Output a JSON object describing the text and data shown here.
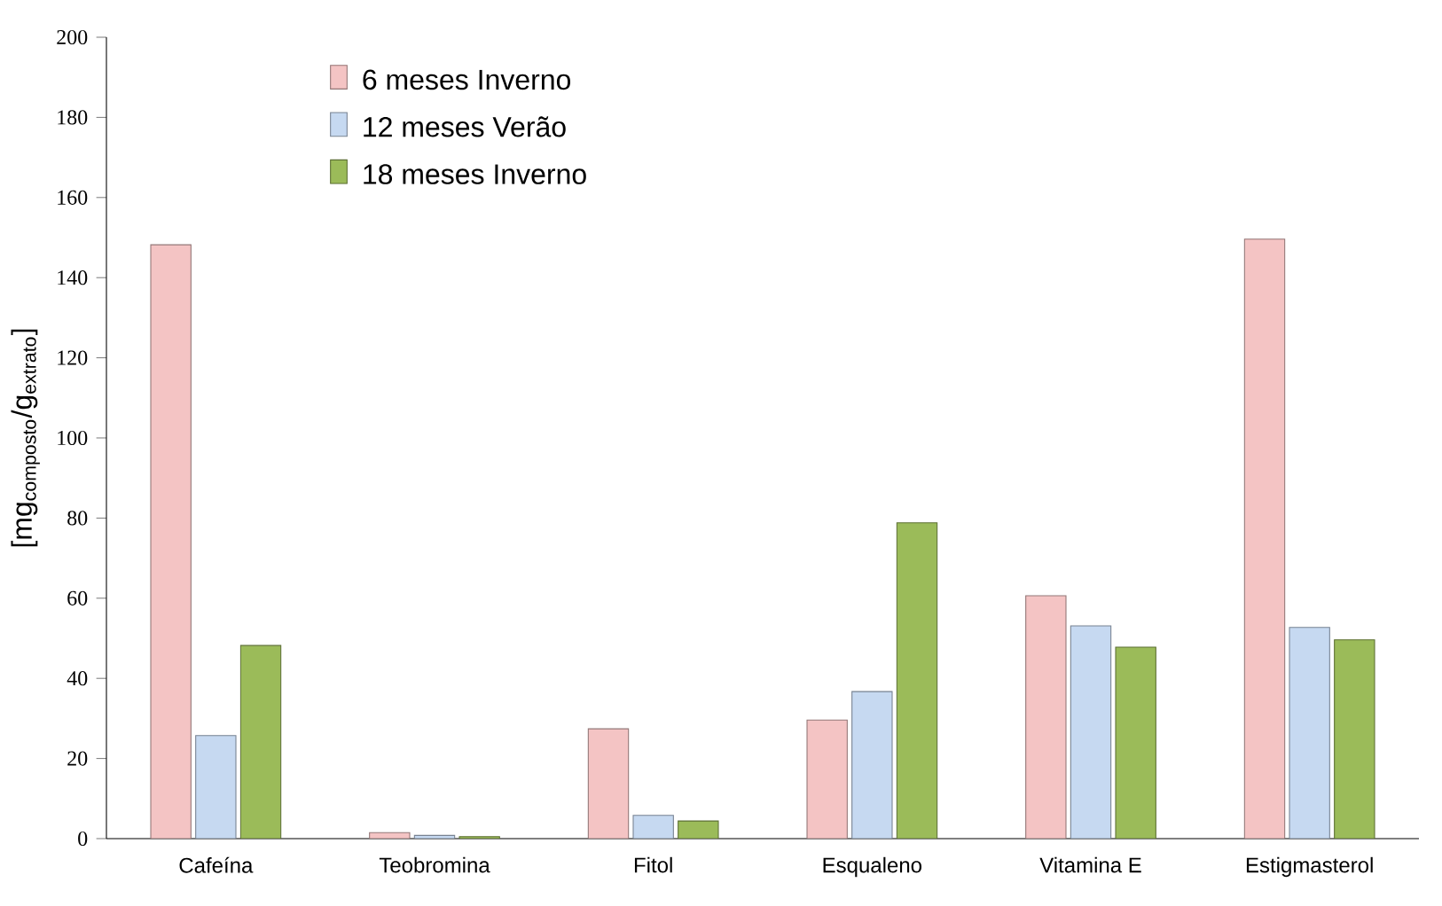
{
  "chart_data": {
    "type": "bar",
    "ylabel": "[mg$_{composto}$/g$_{extrato}$]",
    "categories": [
      "Cafeína",
      "Teobromina",
      "Fitol",
      "Esqualeno",
      "Vitamina E",
      "Estigmasterol"
    ],
    "series": [
      {
        "name": "6 meses Inverno",
        "color": "#f4c4c4",
        "values": [
          148.2,
          1.5,
          27.4,
          29.6,
          60.6,
          149.6
        ]
      },
      {
        "name": "12 meses Verão",
        "color": "#c6d9f1",
        "values": [
          25.7,
          0.8,
          5.8,
          36.7,
          53.1,
          52.7
        ]
      },
      {
        "name": "18 meses Inverno",
        "color": "#9bbb59",
        "values": [
          48.2,
          0.5,
          4.4,
          78.8,
          47.8,
          49.6
        ]
      }
    ],
    "ylim": [
      0,
      200
    ],
    "yticks": [
      0,
      20,
      40,
      60,
      80,
      100,
      120,
      140,
      160,
      180,
      200
    ],
    "legend": "top left"
  }
}
